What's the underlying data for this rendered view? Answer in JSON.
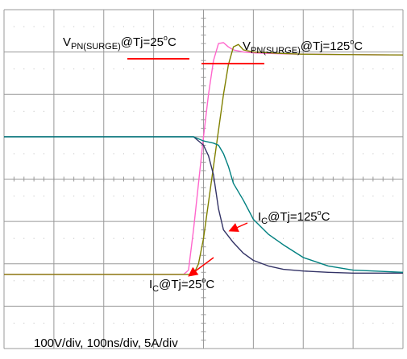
{
  "chart_data": {
    "type": "line",
    "title": "",
    "xlabel": "",
    "ylabel": "",
    "grid": true,
    "x_divisions": 8,
    "y_divisions": 8,
    "xlim": [
      -400,
      400
    ],
    "ylim": [
      -4,
      4
    ],
    "x_unit": "ns",
    "y_unit": "div",
    "scale_note": "100V/div, 100ns/div, 5A/div",
    "annotations": {
      "vpn25": {
        "main": "V",
        "sub": "PN(SURGE)",
        "rest": "@Tj=25",
        "sup": "o",
        "tail": "C"
      },
      "vpn125": {
        "main": "V",
        "sub": "PN(SURGE)",
        "rest": "@Tj=125",
        "sup": "o",
        "tail": "C"
      },
      "ic125": {
        "main": "I",
        "sub": "C",
        "rest": "@Tj=125",
        "sup": "o",
        "tail": "C"
      },
      "ic25": {
        "main": "I",
        "sub": "C",
        "rest": "@Tj=25",
        "sup": "o",
        "tail": "C"
      }
    },
    "colors": {
      "v25": "#ff66cc",
      "v125": "#808000",
      "i25": "#333366",
      "i125": "#008080",
      "annotation": "#ff0000",
      "grid": "#999999"
    },
    "series": [
      {
        "key": "v25",
        "x": [
          -400,
          -300,
          -200,
          -100,
          -40,
          -30,
          -20,
          -10,
          0,
          10,
          20,
          30,
          40,
          50,
          60,
          80,
          100,
          150,
          200,
          300,
          400
        ],
        "values": [
          -2.25,
          -2.25,
          -2.25,
          -2.25,
          -2.25,
          -2.15,
          -1.2,
          -0.1,
          1.0,
          2.0,
          2.8,
          3.2,
          3.22,
          3.12,
          3.05,
          3.0,
          2.98,
          2.96,
          2.95,
          2.94,
          2.93
        ]
      },
      {
        "key": "v125",
        "x": [
          -400,
          -300,
          -200,
          -100,
          -20,
          -10,
          0,
          20,
          40,
          50,
          60,
          70,
          80,
          100,
          150,
          200,
          300,
          400
        ],
        "values": [
          -2.25,
          -2.25,
          -2.25,
          -2.25,
          -2.25,
          -2.0,
          -1.4,
          0.3,
          2.0,
          2.7,
          3.12,
          3.18,
          3.05,
          3.0,
          2.97,
          2.95,
          2.94,
          2.93
        ]
      },
      {
        "key": "i25",
        "x": [
          -400,
          -300,
          -200,
          -100,
          -20,
          0,
          10,
          20,
          30,
          40,
          60,
          80,
          100,
          130,
          160,
          200,
          250,
          300,
          400
        ],
        "values": [
          1.0,
          1.0,
          1.0,
          1.0,
          1.0,
          0.8,
          0.55,
          0.1,
          -0.7,
          -1.2,
          -1.5,
          -1.75,
          -1.92,
          -2.05,
          -2.13,
          -2.17,
          -2.2,
          -2.22,
          -2.22
        ]
      },
      {
        "key": "i125",
        "x": [
          -400,
          -300,
          -200,
          -100,
          -20,
          0,
          20,
          30,
          40,
          50,
          60,
          80,
          100,
          130,
          160,
          200,
          250,
          300,
          400
        ],
        "values": [
          1.0,
          1.0,
          1.0,
          1.0,
          1.0,
          0.9,
          0.85,
          0.8,
          0.6,
          0.3,
          -0.1,
          -0.5,
          -0.95,
          -1.3,
          -1.55,
          -1.85,
          -2.05,
          -2.15,
          -2.2
        ]
      }
    ]
  }
}
